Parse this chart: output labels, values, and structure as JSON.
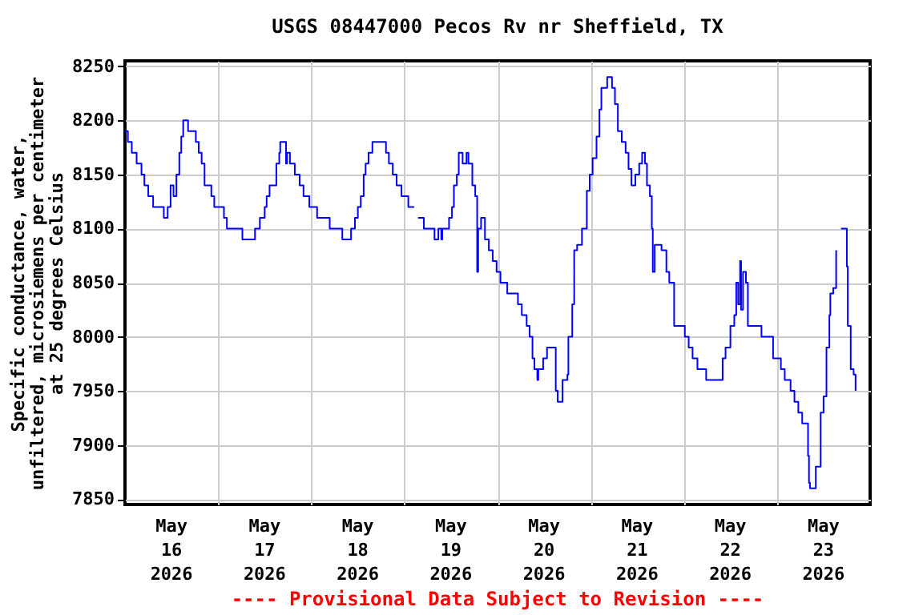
{
  "chart_data": {
    "type": "step",
    "title": "USGS 08447000 Pecos Rv nr Sheffield, TX",
    "ylabel": "Specific conductance, water,\nunfiltered, microsiemens per centimeter\nat 25 degrees Celsius",
    "annotations": [
      "---- Provisional Data Subject to Revision ----"
    ],
    "grid": true,
    "xlim": [
      "2026-05-16T00:00",
      "2026-05-24T00:00"
    ],
    "xticks": [
      {
        "value": "2026-05-16T12:00",
        "label": "May\n16\n2026"
      },
      {
        "value": "2026-05-17T00:00",
        "label": null
      },
      {
        "value": "2026-05-17T12:00",
        "label": "May\n17\n2026"
      },
      {
        "value": "2026-05-18T00:00",
        "label": null
      },
      {
        "value": "2026-05-18T12:00",
        "label": "May\n18\n2026"
      },
      {
        "value": "2026-05-19T00:00",
        "label": null
      },
      {
        "value": "2026-05-19T12:00",
        "label": "May\n19\n2026"
      },
      {
        "value": "2026-05-20T00:00",
        "label": null
      },
      {
        "value": "2026-05-20T12:00",
        "label": "May\n20\n2026"
      },
      {
        "value": "2026-05-21T00:00",
        "label": null
      },
      {
        "value": "2026-05-21T12:00",
        "label": "May\n21\n2026"
      },
      {
        "value": "2026-05-22T00:00",
        "label": null
      },
      {
        "value": "2026-05-22T12:00",
        "label": "May\n22\n2026"
      },
      {
        "value": "2026-05-23T00:00",
        "label": null
      },
      {
        "value": "2026-05-23T12:00",
        "label": "May\n23\n2026"
      }
    ],
    "ylim": [
      7845,
      8255
    ],
    "yticks": [
      7850,
      7900,
      7950,
      8000,
      8050,
      8100,
      8150,
      8200,
      8250
    ],
    "x": [
      "2026-05-16T00:00",
      "2026-05-16T00:45",
      "2026-05-16T01:45",
      "2026-05-16T03:00",
      "2026-05-16T04:15",
      "2026-05-16T05:00",
      "2026-05-16T06:00",
      "2026-05-16T07:15",
      "2026-05-16T09:45",
      "2026-05-16T10:00",
      "2026-05-16T11:00",
      "2026-05-16T11:45",
      "2026-05-16T12:30",
      "2026-05-16T13:15",
      "2026-05-16T14:00",
      "2026-05-16T14:30",
      "2026-05-16T15:00",
      "2026-05-16T15:30",
      "2026-05-16T16:15",
      "2026-05-16T18:15",
      "2026-05-16T19:00",
      "2026-05-16T19:45",
      "2026-05-16T20:30",
      "2026-05-16T21:30",
      "2026-05-16T22:15",
      "2026-05-16T23:00",
      "2026-05-17T01:00",
      "2026-05-17T01:30",
      "2026-05-17T02:15",
      "2026-05-17T05:45",
      "2026-05-17T06:15",
      "2026-05-17T09:00",
      "2026-05-17T09:30",
      "2026-05-17T10:45",
      "2026-05-17T12:00",
      "2026-05-17T12:30",
      "2026-05-17T13:15",
      "2026-05-17T14:45",
      "2026-05-17T15:00",
      "2026-05-17T15:45",
      "2026-05-17T16:00",
      "2026-05-17T16:45",
      "2026-05-17T17:30",
      "2026-05-17T17:45",
      "2026-05-17T18:30",
      "2026-05-17T19:00",
      "2026-05-17T19:45",
      "2026-05-17T21:00",
      "2026-05-17T22:00",
      "2026-05-17T23:30",
      "2026-05-18T01:30",
      "2026-05-18T04:15",
      "2026-05-18T04:45",
      "2026-05-18T07:15",
      "2026-05-18T08:00",
      "2026-05-18T09:45",
      "2026-05-18T10:15",
      "2026-05-18T11:15",
      "2026-05-18T12:00",
      "2026-05-18T12:45",
      "2026-05-18T13:30",
      "2026-05-18T14:00",
      "2026-05-18T14:45",
      "2026-05-18T15:45",
      "2026-05-18T18:30",
      "2026-05-18T19:15",
      "2026-05-18T20:00",
      "2026-05-18T21:00",
      "2026-05-18T22:00",
      "2026-05-18T23:15",
      "2026-05-19T01:00",
      "2026-05-19T02:30",
      "2026-05-19T03:00",
      "2026-05-19T03:30",
      "2026-05-19T05:00",
      "2026-05-19T07:30",
      "2026-05-19T07:45",
      "2026-05-19T08:45",
      "2026-05-19T09:30",
      "2026-05-19T09:45",
      "2026-05-19T11:15",
      "2026-05-19T11:30",
      "2026-05-19T12:15",
      "2026-05-19T12:45",
      "2026-05-19T13:30",
      "2026-05-19T14:00",
      "2026-05-19T15:00",
      "2026-05-19T16:00",
      "2026-05-19T16:30",
      "2026-05-19T17:30",
      "2026-05-19T18:15",
      "2026-05-19T18:45",
      "2026-05-19T19:00",
      "2026-05-19T19:45",
      "2026-05-19T20:45",
      "2026-05-19T21:45",
      "2026-05-19T22:45",
      "2026-05-19T23:45",
      "2026-05-20T00:45",
      "2026-05-20T02:30",
      "2026-05-20T05:00",
      "2026-05-20T05:15",
      "2026-05-20T06:15",
      "2026-05-20T07:30",
      "2026-05-20T08:15",
      "2026-05-20T09:00",
      "2026-05-20T09:30",
      "2026-05-20T10:15",
      "2026-05-20T10:30",
      "2026-05-20T11:45",
      "2026-05-20T12:45",
      "2026-05-20T14:00",
      "2026-05-20T15:00",
      "2026-05-20T15:30",
      "2026-05-20T16:15",
      "2026-05-20T16:45",
      "2026-05-20T18:00",
      "2026-05-20T18:15",
      "2026-05-20T19:15",
      "2026-05-20T19:45",
      "2026-05-20T20:30",
      "2026-05-20T21:45",
      "2026-05-20T23:00",
      "2026-05-20T23:45",
      "2026-05-21T00:30",
      "2026-05-21T01:30",
      "2026-05-21T02:15",
      "2026-05-21T02:45",
      "2026-05-21T04:15",
      "2026-05-21T05:15",
      "2026-05-21T05:30",
      "2026-05-21T06:15",
      "2026-05-21T07:00",
      "2026-05-21T08:00",
      "2026-05-21T09:00",
      "2026-05-21T09:45",
      "2026-05-21T10:30",
      "2026-05-21T11:00",
      "2026-05-21T11:30",
      "2026-05-21T12:30",
      "2026-05-21T13:15",
      "2026-05-21T14:00",
      "2026-05-21T14:30",
      "2026-05-21T15:15",
      "2026-05-21T15:45",
      "2026-05-21T16:00",
      "2026-05-21T16:30",
      "2026-05-21T17:15",
      "2026-05-21T18:15",
      "2026-05-21T19:30",
      "2026-05-21T20:15",
      "2026-05-21T21:30",
      "2026-05-21T23:45",
      "2026-05-22T00:15",
      "2026-05-22T01:15",
      "2026-05-22T02:15",
      "2026-05-22T03:30",
      "2026-05-22T05:45",
      "2026-05-22T09:15",
      "2026-05-22T10:00",
      "2026-05-22T10:45",
      "2026-05-22T12:00",
      "2026-05-22T13:00",
      "2026-05-22T13:30",
      "2026-05-22T14:00",
      "2026-05-22T14:30",
      "2026-05-22T14:45",
      "2026-05-22T15:15",
      "2026-05-22T16:00",
      "2026-05-22T16:30",
      "2026-05-22T19:15",
      "2026-05-22T20:00",
      "2026-05-22T21:45",
      "2026-05-22T23:00",
      "2026-05-23T01:00",
      "2026-05-23T02:00",
      "2026-05-23T03:30",
      "2026-05-23T04:30",
      "2026-05-23T05:30",
      "2026-05-23T06:30",
      "2026-05-23T08:00",
      "2026-05-23T08:15",
      "2026-05-23T08:30",
      "2026-05-23T09:15",
      "2026-05-23T10:00",
      "2026-05-23T11:15",
      "2026-05-23T12:00",
      "2026-05-23T12:45",
      "2026-05-23T13:30",
      "2026-05-23T13:45",
      "2026-05-23T14:30",
      "2026-05-23T15:15",
      "2026-05-23T15:45",
      "2026-05-23T16:30",
      "2026-05-23T17:30",
      "2026-05-23T18:00",
      "2026-05-23T18:15",
      "2026-05-23T19:00",
      "2026-05-23T19:45",
      "2026-05-23T20:15"
    ],
    "series": [
      {
        "color": "#0000ff",
        "values": [
          8190,
          8180,
          8170,
          8160,
          8150,
          8140,
          8130,
          8120,
          8120,
          8110,
          8120,
          8140,
          8130,
          8150,
          8170,
          8185,
          8200,
          8200,
          8190,
          8180,
          8170,
          8160,
          8140,
          8140,
          8130,
          8120,
          8120,
          8110,
          8100,
          8100,
          8090,
          8090,
          8100,
          8110,
          8120,
          8130,
          8140,
          8140,
          8160,
          8170,
          8180,
          8180,
          8160,
          8170,
          8160,
          8160,
          8150,
          8140,
          8130,
          8120,
          8110,
          8110,
          8100,
          8100,
          8090,
          8090,
          8100,
          8110,
          8120,
          8130,
          8150,
          8160,
          8170,
          8180,
          8180,
          8170,
          8160,
          8150,
          8140,
          8130,
          8120,
          8120,
          null,
          8110,
          8100,
          8100,
          8090,
          8100,
          8090,
          8100,
          8100,
          8110,
          8120,
          8140,
          8150,
          8170,
          8160,
          8170,
          8160,
          8140,
          8130,
          8060,
          8100,
          8110,
          8090,
          8080,
          8070,
          8060,
          8050,
          8040,
          8040,
          8030,
          8020,
          8010,
          8000,
          7980,
          7970,
          7960,
          7970,
          7980,
          7990,
          7990,
          7950,
          7940,
          7940,
          7960,
          7965,
          8000,
          8030,
          8080,
          8085,
          8100,
          8135,
          8150,
          8165,
          8185,
          8210,
          8230,
          8240,
          8240,
          8230,
          8215,
          8190,
          8180,
          8170,
          8155,
          8140,
          8140,
          8150,
          8160,
          8170,
          8160,
          8140,
          8130,
          8100,
          8060,
          8085,
          8085,
          8080,
          8060,
          8050,
          8010,
          8010,
          8000,
          7990,
          7980,
          7970,
          7960,
          7960,
          7980,
          7990,
          8010,
          8020,
          8050,
          8030,
          8070,
          8025,
          8060,
          8050,
          8010,
          8010,
          8000,
          8000,
          7980,
          7970,
          7960,
          7950,
          7940,
          7930,
          7920,
          7890,
          7865,
          7860,
          7860,
          7880,
          7930,
          7945,
          7990,
          8020,
          8040,
          8045,
          8080,
          null,
          8100,
          8100,
          8065,
          8010,
          7970,
          7965,
          7950
        ]
      }
    ]
  }
}
